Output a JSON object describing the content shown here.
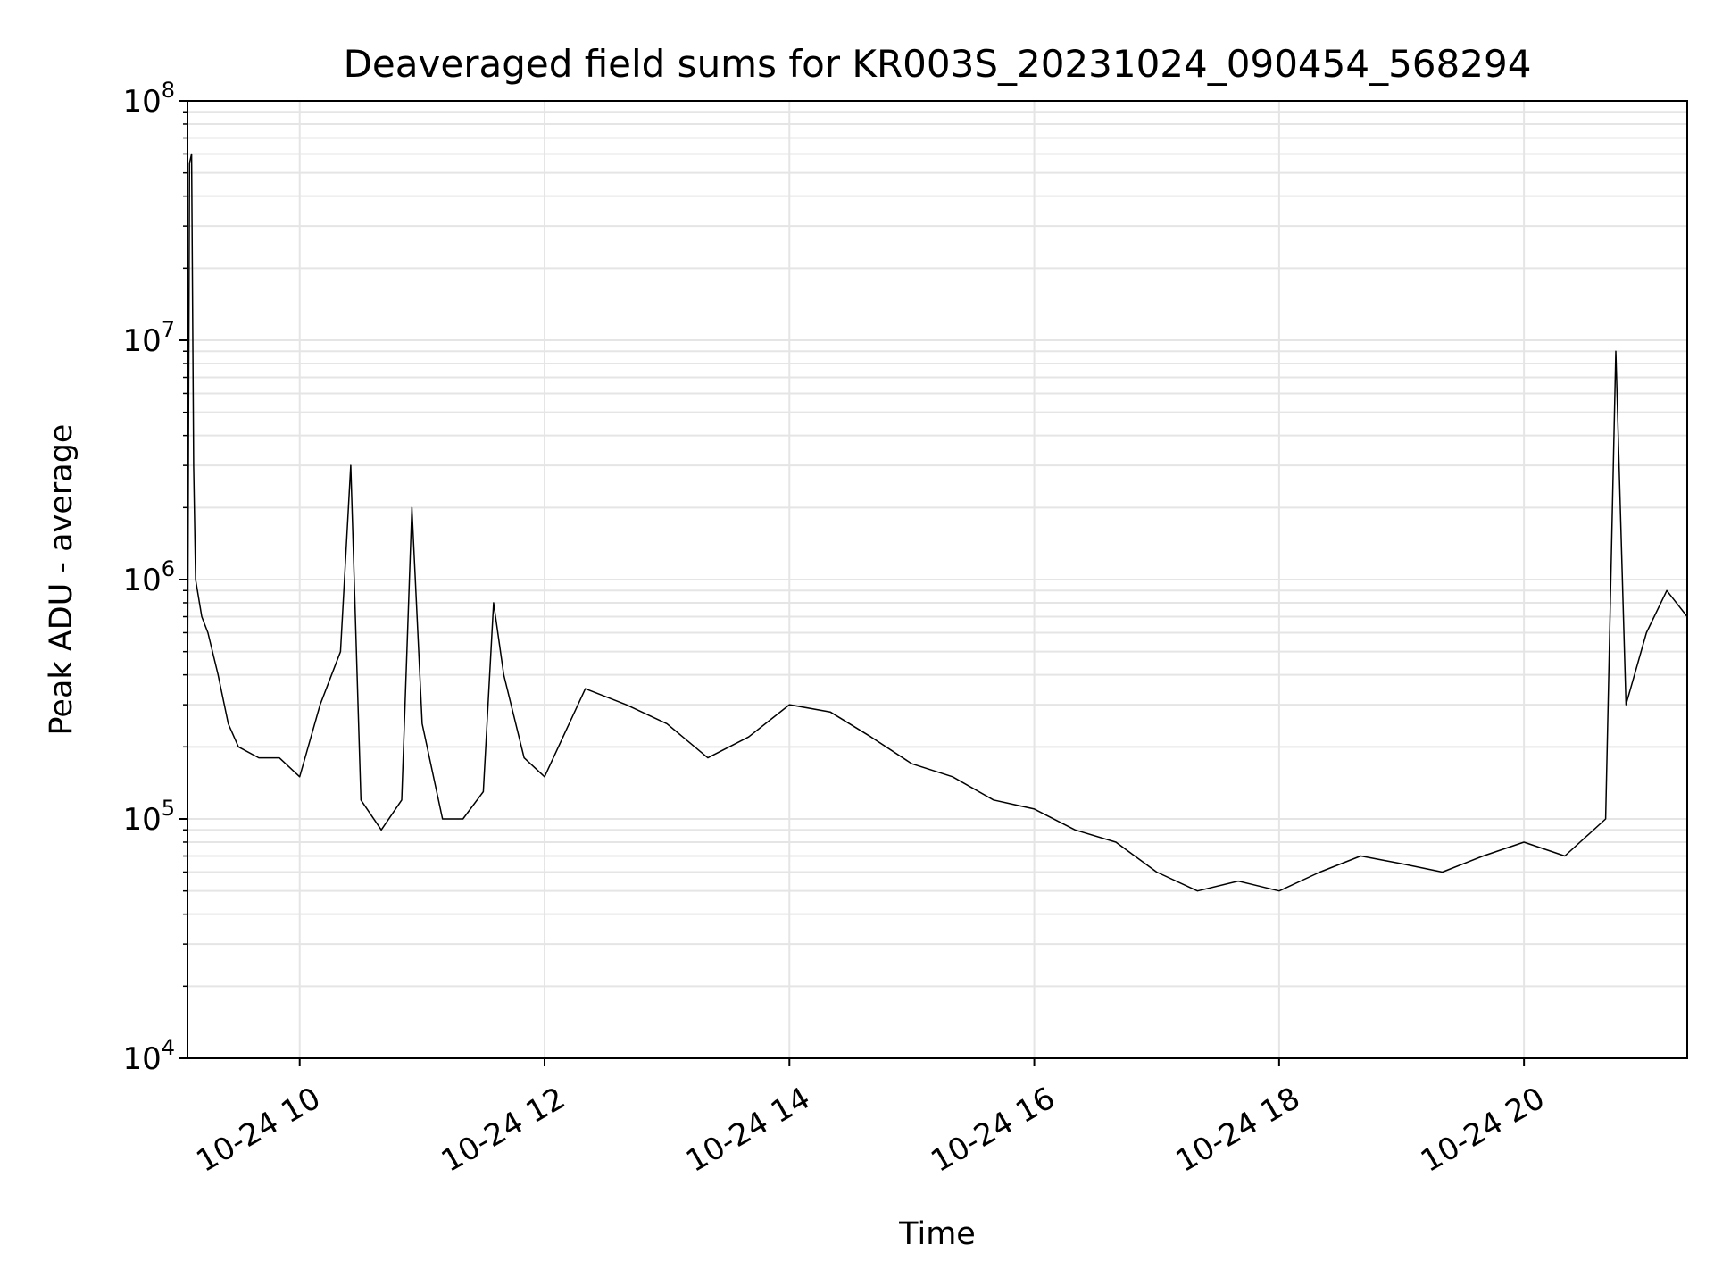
{
  "chart_data": {
    "type": "line",
    "title": "Deaveraged field sums for KR003S_20231024_090454_568294",
    "xlabel": "Time",
    "ylabel": "Peak ADU - average",
    "yscale": "log",
    "ylim": [
      10000,
      100000000
    ],
    "xlim": [
      "2023-10-24 09:05",
      "2023-10-24 21:20"
    ],
    "x_ticks": [
      {
        "time": "2023-10-24 10:00",
        "label": "10-24 10"
      },
      {
        "time": "2023-10-24 12:00",
        "label": "10-24 12"
      },
      {
        "time": "2023-10-24 14:00",
        "label": "10-24 14"
      },
      {
        "time": "2023-10-24 16:00",
        "label": "10-24 16"
      },
      {
        "time": "2023-10-24 18:00",
        "label": "10-24 18"
      },
      {
        "time": "2023-10-24 20:00",
        "label": "10-24 20"
      }
    ],
    "y_ticks": [
      {
        "value": 10000,
        "base": "10",
        "exp": "4"
      },
      {
        "value": 100000,
        "base": "10",
        "exp": "5"
      },
      {
        "value": 1000000,
        "base": "10",
        "exp": "6"
      },
      {
        "value": 10000000,
        "base": "10",
        "exp": "7"
      },
      {
        "value": 100000000,
        "base": "10",
        "exp": "8"
      }
    ],
    "grid": true,
    "line_color": "#000000",
    "grid_color": "#e5e5e5",
    "series": [
      {
        "x": [
          "2023-10-24 09:05",
          "2023-10-24 09:06",
          "2023-10-24 09:07",
          "2023-10-24 09:08",
          "2023-10-24 09:09",
          "2023-10-24 09:12",
          "2023-10-24 09:15",
          "2023-10-24 09:20",
          "2023-10-24 09:25",
          "2023-10-24 09:30",
          "2023-10-24 09:40",
          "2023-10-24 09:50",
          "2023-10-24 10:00",
          "2023-10-24 10:10",
          "2023-10-24 10:20",
          "2023-10-24 10:25",
          "2023-10-24 10:30",
          "2023-10-24 10:40",
          "2023-10-24 10:50",
          "2023-10-24 10:55",
          "2023-10-24 11:00",
          "2023-10-24 11:10",
          "2023-10-24 11:20",
          "2023-10-24 11:30",
          "2023-10-24 11:35",
          "2023-10-24 11:40",
          "2023-10-24 11:50",
          "2023-10-24 12:00",
          "2023-10-24 12:20",
          "2023-10-24 12:40",
          "2023-10-24 13:00",
          "2023-10-24 13:20",
          "2023-10-24 13:40",
          "2023-10-24 14:00",
          "2023-10-24 14:20",
          "2023-10-24 14:40",
          "2023-10-24 15:00",
          "2023-10-24 15:20",
          "2023-10-24 15:40",
          "2023-10-24 16:00",
          "2023-10-24 16:20",
          "2023-10-24 16:40",
          "2023-10-24 17:00",
          "2023-10-24 17:20",
          "2023-10-24 17:40",
          "2023-10-24 18:00",
          "2023-10-24 18:20",
          "2023-10-24 18:40",
          "2023-10-24 19:00",
          "2023-10-24 19:20",
          "2023-10-24 19:40",
          "2023-10-24 20:00",
          "2023-10-24 20:20",
          "2023-10-24 20:40",
          "2023-10-24 20:45",
          "2023-10-24 20:50",
          "2023-10-24 21:00",
          "2023-10-24 21:10",
          "2023-10-24 21:20"
        ],
        "y": [
          300000,
          55000000,
          60000000,
          3000000,
          1000000,
          700000,
          600000,
          400000,
          250000,
          200000,
          180000,
          180000,
          150000,
          300000,
          500000,
          3000000,
          120000,
          90000,
          120000,
          2000000,
          250000,
          100000,
          100000,
          130000,
          800000,
          400000,
          180000,
          150000,
          350000,
          300000,
          250000,
          180000,
          220000,
          300000,
          280000,
          220000,
          170000,
          150000,
          120000,
          110000,
          90000,
          80000,
          60000,
          50000,
          55000,
          50000,
          60000,
          70000,
          65000,
          60000,
          70000,
          80000,
          70000,
          100000,
          9000000,
          300000,
          600000,
          900000,
          700000
        ]
      }
    ]
  }
}
